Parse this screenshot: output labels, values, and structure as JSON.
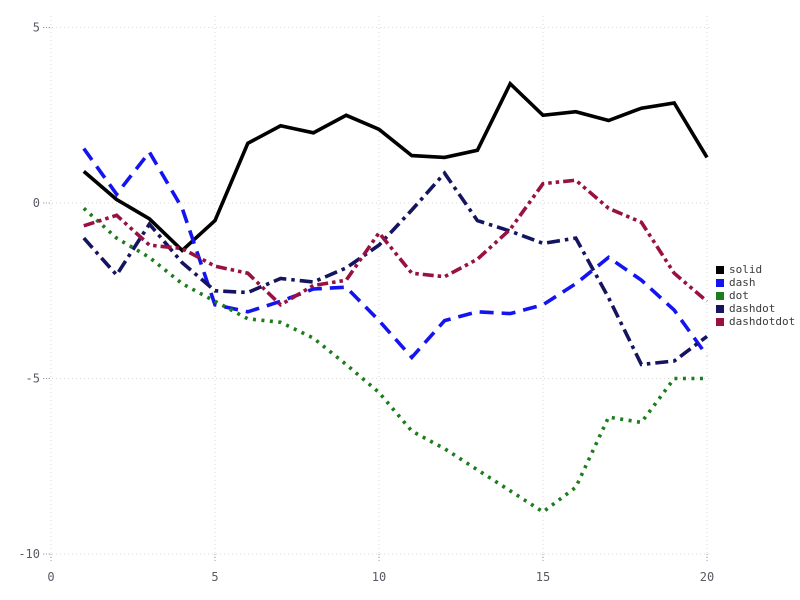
{
  "figure": {
    "background": "#ffffff",
    "grid_color": "#d9d9d9",
    "tick_mark_color": "#9a9aa6",
    "tick_label_color": "#5a5a66",
    "legend_text_color": "#3b3b3b"
  },
  "chart_data": {
    "type": "line",
    "title": "",
    "xlabel": "",
    "ylabel": "",
    "xlim": [
      0,
      20
    ],
    "ylim": [
      -10,
      5
    ],
    "grid": true,
    "legend_position": "right-middle",
    "x": [
      1,
      2,
      3,
      4,
      5,
      6,
      7,
      8,
      9,
      10,
      11,
      12,
      13,
      14,
      15,
      16,
      17,
      18,
      19,
      20
    ],
    "xticks": {
      "values": [
        0,
        5,
        10,
        15,
        20
      ],
      "labels": [
        "0",
        "5",
        "10",
        "15",
        "20"
      ]
    },
    "yticks": {
      "values": [
        5,
        0,
        -5,
        -10
      ],
      "labels": [
        "5",
        "0",
        "-5",
        "-10"
      ]
    },
    "series": [
      {
        "name": "solid",
        "color": "#000000",
        "dash_style": "solid",
        "values": [
          0.9,
          0.1,
          -0.45,
          -1.35,
          -0.5,
          1.7,
          2.2,
          2.0,
          2.5,
          2.1,
          1.35,
          1.3,
          1.5,
          3.4,
          2.5,
          2.6,
          2.35,
          2.7,
          2.85,
          1.3
        ]
      },
      {
        "name": "dash",
        "color": "#1414f0",
        "dash_style": "dash",
        "values": [
          1.55,
          0.25,
          1.45,
          -0.15,
          -2.9,
          -3.1,
          -2.8,
          -2.45,
          -2.4,
          -3.35,
          -4.4,
          -3.35,
          -3.1,
          -3.15,
          -2.9,
          -2.3,
          -1.55,
          -2.2,
          -3.05,
          -4.35
        ]
      },
      {
        "name": "dot",
        "color": "#1d7d1d",
        "dash_style": "dot",
        "values": [
          -0.15,
          -1.0,
          -1.55,
          -2.3,
          -2.8,
          -3.3,
          -3.4,
          -3.85,
          -4.6,
          -5.4,
          -6.5,
          -7.0,
          -7.6,
          -8.2,
          -8.8,
          -8.1,
          -6.1,
          -6.25,
          -5.0,
          -5.0
        ]
      },
      {
        "name": "dashdot",
        "color": "#14145f",
        "dash_style": "dashdot",
        "values": [
          -1.0,
          -2.05,
          -0.6,
          -1.7,
          -2.5,
          -2.55,
          -2.15,
          -2.25,
          -1.85,
          -1.2,
          -0.2,
          0.85,
          -0.5,
          -0.8,
          -1.15,
          -1.0,
          -2.7,
          -4.6,
          -4.5,
          -3.8
        ]
      },
      {
        "name": "dashdotdot",
        "color": "#991043",
        "dash_style": "dashdotdot",
        "values": [
          -0.65,
          -0.35,
          -1.2,
          -1.3,
          -1.8,
          -2.0,
          -2.9,
          -2.35,
          -2.2,
          -0.85,
          -2.0,
          -2.1,
          -1.6,
          -0.75,
          0.55,
          0.65,
          -0.15,
          -0.55,
          -2.0,
          -2.8
        ]
      }
    ]
  }
}
